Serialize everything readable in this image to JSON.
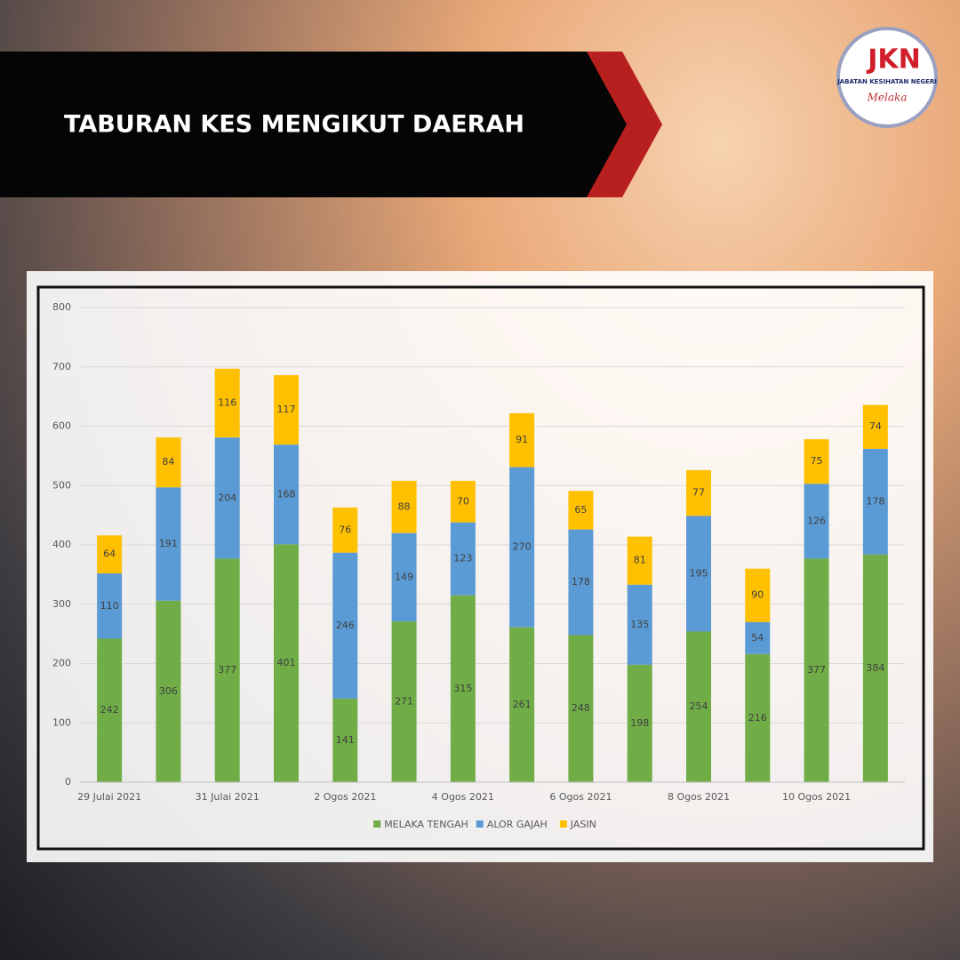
{
  "header": {
    "title": "TABURAN KES MENGIKUT DAERAH"
  },
  "logo": {
    "mark": "JKN",
    "name": "JABATAN KESIHATAN NEGERI",
    "state": "Melaka"
  },
  "chart_data": {
    "type": "stacked_bar",
    "categories": [
      "29 Julai 2021",
      null,
      "31 Julai 2021",
      null,
      "2 Ogos 2021",
      null,
      "4 Ogos 2021",
      null,
      "6 Ogos 2021",
      null,
      "8 Ogos 2021",
      null,
      "10 Ogos 2021",
      null
    ],
    "series": [
      {
        "name": "MELAKA TENGAH",
        "color": "#70ad47",
        "values": [
          242,
          306,
          377,
          401,
          141,
          271,
          315,
          261,
          248,
          198,
          254,
          216,
          377,
          384
        ]
      },
      {
        "name": "ALOR GAJAH",
        "color": "#5b9bd5",
        "values": [
          110,
          191,
          204,
          168,
          246,
          149,
          123,
          270,
          178,
          135,
          195,
          54,
          126,
          178
        ]
      },
      {
        "name": "JASIN",
        "color": "#ffc000",
        "values": [
          64,
          84,
          116,
          117,
          76,
          88,
          70,
          91,
          65,
          81,
          77,
          90,
          75,
          74
        ]
      }
    ],
    "ylim": [
      0,
      800
    ],
    "yticks": [
      0,
      100,
      200,
      300,
      400,
      500,
      600,
      700,
      800
    ],
    "grid": true,
    "legend": "bottom"
  }
}
